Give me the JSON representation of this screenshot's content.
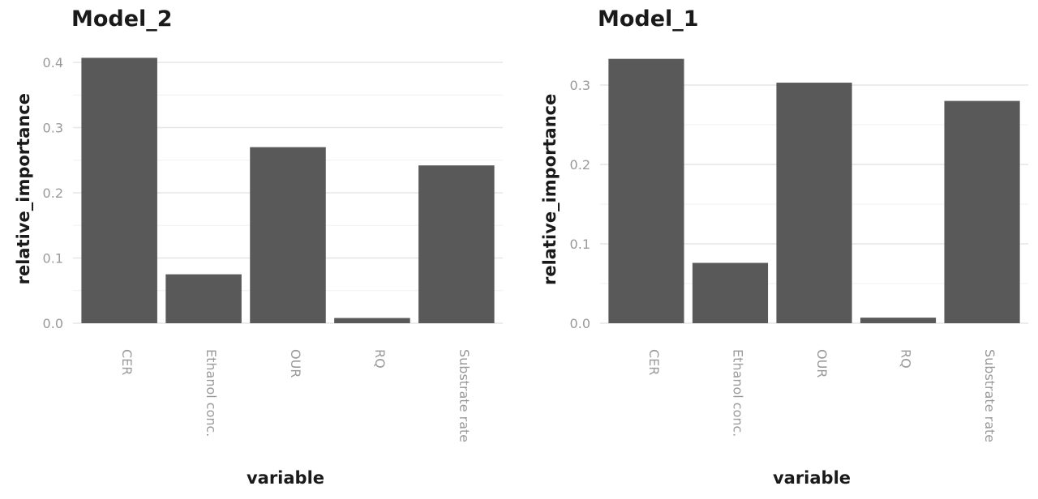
{
  "chart_data": [
    {
      "type": "bar",
      "title": "Model_2",
      "xlabel": "variable",
      "ylabel": "relative_importance",
      "categories": [
        "CER",
        "Ethanol conc.",
        "OUR",
        "RQ",
        "Substrate rate"
      ],
      "values": [
        0.407,
        0.075,
        0.27,
        0.008,
        0.242
      ],
      "ylim": [
        0,
        0.4
      ],
      "yticks": [
        0.0,
        0.1,
        0.2,
        0.3,
        0.4
      ],
      "ytick_labels": [
        "0.0",
        "0.1",
        "0.2",
        "0.3",
        "0.4"
      ],
      "grid": true,
      "bar_color": "#595959"
    },
    {
      "type": "bar",
      "title": "Model_1",
      "xlabel": "variable",
      "ylabel": "relative_importance",
      "categories": [
        "CER",
        "Ethanol conc.",
        "OUR",
        "RQ",
        "Substrate rate"
      ],
      "values": [
        0.333,
        0.076,
        0.303,
        0.007,
        0.28
      ],
      "ylim": [
        0,
        0.3
      ],
      "yticks": [
        0.0,
        0.1,
        0.2,
        0.3
      ],
      "ytick_labels": [
        "0.0",
        "0.1",
        "0.2",
        "0.3"
      ],
      "grid": true,
      "bar_color": "#595959"
    }
  ]
}
